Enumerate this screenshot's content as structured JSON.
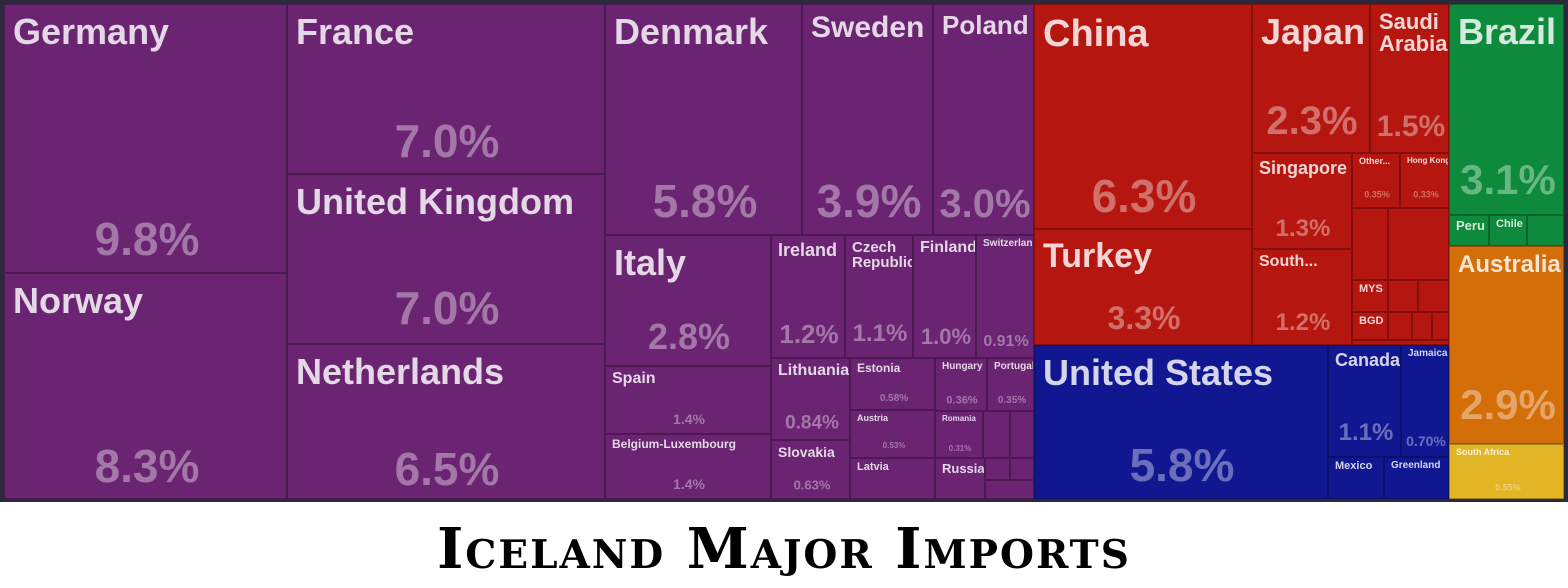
{
  "title": "Iceland Major Imports",
  "colors": {
    "europe": "#6a2472",
    "asia": "#b5160f",
    "north_america": "#101791",
    "south_america": "#0d8a3b",
    "oceania": "#d46e08",
    "africa": "#e1b523"
  },
  "chart_data": {
    "type": "treemap",
    "title": "Iceland Major Imports",
    "unit": "%",
    "items": [
      {
        "name": "Germany",
        "label": "Germany",
        "value": 9.8,
        "pct_label": "9.8%",
        "region": "europe"
      },
      {
        "name": "Norway",
        "label": "Norway",
        "value": 8.3,
        "pct_label": "8.3%",
        "region": "europe"
      },
      {
        "name": "France",
        "label": "France",
        "value": 7.0,
        "pct_label": "7.0%",
        "region": "europe"
      },
      {
        "name": "United Kingdom",
        "label": "United Kingdom",
        "value": 7.0,
        "pct_label": "7.0%",
        "region": "europe"
      },
      {
        "name": "Netherlands",
        "label": "Netherlands",
        "value": 6.5,
        "pct_label": "6.5%",
        "region": "europe"
      },
      {
        "name": "Denmark",
        "label": "Denmark",
        "value": 5.8,
        "pct_label": "5.8%",
        "region": "europe"
      },
      {
        "name": "Sweden",
        "label": "Sweden",
        "value": 3.9,
        "pct_label": "3.9%",
        "region": "europe"
      },
      {
        "name": "Poland",
        "label": "Poland",
        "value": 3.0,
        "pct_label": "3.0%",
        "region": "europe"
      },
      {
        "name": "Italy",
        "label": "Italy",
        "value": 2.8,
        "pct_label": "2.8%",
        "region": "europe"
      },
      {
        "name": "Ireland",
        "label": "Ireland",
        "value": 1.2,
        "pct_label": "1.2%",
        "region": "europe"
      },
      {
        "name": "Czech Republic",
        "label": "Czech\nRepublic",
        "value": 1.1,
        "pct_label": "1.1%",
        "region": "europe"
      },
      {
        "name": "Finland",
        "label": "Finland",
        "value": 1.0,
        "pct_label": "1.0%",
        "region": "europe"
      },
      {
        "name": "Switzerland",
        "label": "Switzerland",
        "value": 0.91,
        "pct_label": "0.91%",
        "region": "europe"
      },
      {
        "name": "Spain",
        "label": "Spain",
        "value": 1.4,
        "pct_label": "1.4%",
        "region": "europe"
      },
      {
        "name": "Belgium-Luxembourg",
        "label": "Belgium-Luxembourg",
        "value": 1.4,
        "pct_label": "1.4%",
        "region": "europe"
      },
      {
        "name": "Lithuania",
        "label": "Lithuania",
        "value": 0.84,
        "pct_label": "0.84%",
        "region": "europe"
      },
      {
        "name": "Slovakia",
        "label": "Slovakia",
        "value": 0.63,
        "pct_label": "0.63%",
        "region": "europe"
      },
      {
        "name": "Estonia",
        "label": "Estonia",
        "value": 0.58,
        "pct_label": "0.58%",
        "region": "europe"
      },
      {
        "name": "Austria",
        "label": "Austria",
        "value": 0.53,
        "pct_label": "0.53%",
        "region": "europe"
      },
      {
        "name": "Latvia",
        "label": "Latvia",
        "value": null,
        "pct_label": "",
        "region": "europe"
      },
      {
        "name": "Hungary",
        "label": "Hungary",
        "value": 0.36,
        "pct_label": "0.36%",
        "region": "europe"
      },
      {
        "name": "Romania",
        "label": "Romania",
        "value": 0.31,
        "pct_label": "0.31%",
        "region": "europe"
      },
      {
        "name": "Portugal",
        "label": "Portugal",
        "value": 0.35,
        "pct_label": "0.35%",
        "region": "europe"
      },
      {
        "name": "Russia",
        "label": "Russia",
        "value": null,
        "pct_label": "",
        "region": "europe"
      },
      {
        "name": "China",
        "label": "China",
        "value": 6.3,
        "pct_label": "6.3%",
        "region": "asia"
      },
      {
        "name": "Turkey",
        "label": "Turkey",
        "value": 3.3,
        "pct_label": "3.3%",
        "region": "asia"
      },
      {
        "name": "Japan",
        "label": "Japan",
        "value": 2.3,
        "pct_label": "2.3%",
        "region": "asia"
      },
      {
        "name": "Saudi Arabia",
        "label": "Saudi\nArabia",
        "value": 1.5,
        "pct_label": "1.5%",
        "region": "asia"
      },
      {
        "name": "Singapore",
        "label": "Singapore",
        "value": 1.3,
        "pct_label": "1.3%",
        "region": "asia"
      },
      {
        "name": "South...",
        "label": "South...",
        "value": 1.2,
        "pct_label": "1.2%",
        "region": "asia"
      },
      {
        "name": "Other...",
        "label": "Other...",
        "value": 0.35,
        "pct_label": "0.35%",
        "region": "asia"
      },
      {
        "name": "Hong Kong",
        "label": "Hong Kong",
        "value": 0.33,
        "pct_label": "0.33%",
        "region": "asia"
      },
      {
        "name": "MYS",
        "label": "MYS",
        "value": null,
        "pct_label": "",
        "region": "asia"
      },
      {
        "name": "BGD",
        "label": "BGD",
        "value": null,
        "pct_label": "",
        "region": "asia"
      },
      {
        "name": "United States",
        "label": "United States",
        "value": 5.8,
        "pct_label": "5.8%",
        "region": "north_america"
      },
      {
        "name": "Canada",
        "label": "Canada",
        "value": 1.1,
        "pct_label": "1.1%",
        "region": "north_america"
      },
      {
        "name": "Jamaica",
        "label": "Jamaica",
        "value": 0.7,
        "pct_label": "0.70%",
        "region": "north_america"
      },
      {
        "name": "Mexico",
        "label": "Mexico",
        "value": null,
        "pct_label": "",
        "region": "north_america"
      },
      {
        "name": "Greenland",
        "label": "Greenland",
        "value": null,
        "pct_label": "",
        "region": "north_america"
      },
      {
        "name": "Brazil",
        "label": "Brazil",
        "value": 3.1,
        "pct_label": "3.1%",
        "region": "south_america"
      },
      {
        "name": "Peru",
        "label": "Peru",
        "value": null,
        "pct_label": "",
        "region": "south_america"
      },
      {
        "name": "Chile",
        "label": "Chile",
        "value": null,
        "pct_label": "",
        "region": "south_america"
      },
      {
        "name": "Australia",
        "label": "Australia",
        "value": 2.9,
        "pct_label": "2.9%",
        "region": "oceania"
      },
      {
        "name": "South Africa",
        "label": "South Africa",
        "value": 0.55,
        "pct_label": "0.55%",
        "region": "africa"
      }
    ]
  }
}
